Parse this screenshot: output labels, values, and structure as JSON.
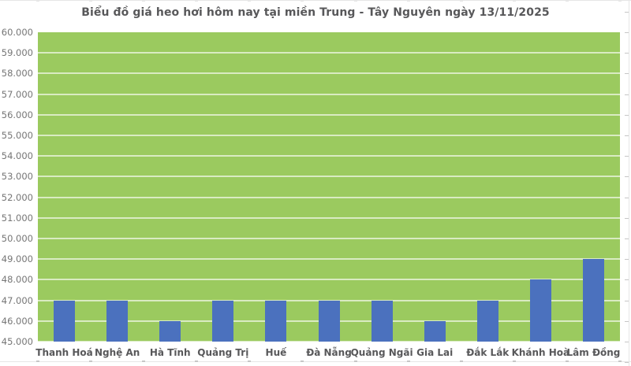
{
  "chart_data": {
    "type": "bar",
    "title": "Biểu đồ giá heo hơi hôm nay tại miền Trung - Tây Nguyên ngày 13/11/2025",
    "categories": [
      "Thanh Hoá",
      "Nghệ An",
      "Hà Tĩnh",
      "Quảng Trị",
      "Huế",
      "Đà Nẵng",
      "Quảng Ngãi",
      "Gia Lai",
      "Đắk Lắk",
      "Khánh Hoà",
      "Lâm Đồng"
    ],
    "values": [
      47000,
      47000,
      46000,
      47000,
      47000,
      47000,
      47000,
      46000,
      47000,
      48000,
      49000
    ],
    "xlabel": "",
    "ylabel": "",
    "ylim": [
      45000,
      60000
    ],
    "ytick_step": 1000,
    "ytick_labels": [
      "60.000",
      "59.000",
      "58.000",
      "57.000",
      "56.000",
      "55.000",
      "54.000",
      "53.000",
      "52.000",
      "51.000",
      "50.000",
      "49.000",
      "48.000",
      "47.000",
      "46.000",
      "45.000"
    ],
    "grid": true,
    "legend": false
  },
  "colors": {
    "plot_bg": "#9bca5f",
    "bar": "#4b71be",
    "grid": "rgba(255,255,255,0.62)",
    "title_text": "#58585a",
    "category_text": "#58585a",
    "ytick_text": "#767676",
    "frame_line": "#e6e6e6",
    "frame_tick": "#c6c6c6"
  }
}
